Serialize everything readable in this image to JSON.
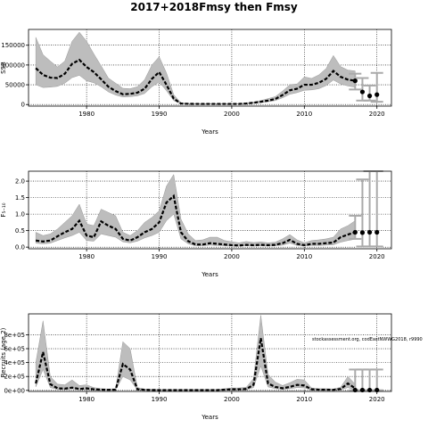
{
  "page_title": "2017+2018Fmsy then Fmsy",
  "colors": {
    "band": "#bdbdbd",
    "line": "#000000",
    "proj_bar": "#aaaaaa",
    "grid": "#000000"
  },
  "chart_data": [
    {
      "type": "line",
      "name": "ssb",
      "title": "",
      "xlabel": "Years",
      "ylabel": "SSB",
      "xlim": [
        1972,
        2022
      ],
      "ylim": [
        -4000,
        190000
      ],
      "xticks": [
        1980,
        1990,
        2000,
        2010,
        2020
      ],
      "xtick_labels": [
        "1980",
        "1990",
        "2000",
        "2010",
        "2020"
      ],
      "yticks": [
        0,
        50000,
        100000,
        150000
      ],
      "ytick_labels": [
        "0",
        "50000",
        "100000",
        "150000"
      ],
      "grid": true,
      "x": [
        1973,
        1974,
        1975,
        1976,
        1977,
        1978,
        1979,
        1980,
        1981,
        1982,
        1983,
        1984,
        1985,
        1986,
        1987,
        1988,
        1989,
        1990,
        1991,
        1992,
        1993,
        1994,
        1995,
        1996,
        1997,
        1998,
        1999,
        2000,
        2001,
        2002,
        2003,
        2004,
        2005,
        2006,
        2007,
        2008,
        2009,
        2010,
        2011,
        2012,
        2013,
        2014,
        2015,
        2016,
        2017
      ],
      "y": [
        92000,
        75000,
        68000,
        67000,
        78000,
        103000,
        113000,
        95000,
        82000,
        64000,
        45000,
        34000,
        26000,
        27000,
        30000,
        40000,
        65000,
        82000,
        50000,
        15000,
        2500,
        1800,
        1500,
        1500,
        1500,
        1500,
        1500,
        1500,
        1500,
        2500,
        4500,
        7000,
        10000,
        14000,
        24000,
        36000,
        40000,
        50000,
        50000,
        55000,
        65000,
        85000,
        70000,
        63000,
        60000
      ],
      "lower": [
        50000,
        43000,
        44000,
        46000,
        54000,
        68000,
        74000,
        60000,
        55000,
        45000,
        32000,
        24000,
        19000,
        20000,
        22000,
        28000,
        45000,
        57000,
        35000,
        10000,
        1500,
        1000,
        900,
        900,
        900,
        900,
        900,
        900,
        900,
        1600,
        3000,
        5000,
        7000,
        10000,
        17000,
        26000,
        30000,
        36000,
        37000,
        40000,
        48000,
        62000,
        52000,
        47000,
        44000
      ],
      "upper": [
        170000,
        126000,
        110000,
        95000,
        110000,
        160000,
        183000,
        160000,
        128000,
        98000,
        67000,
        54000,
        41000,
        40000,
        45000,
        63000,
        100000,
        121000,
        80000,
        25000,
        4000,
        2700,
        2300,
        2300,
        2300,
        2300,
        2300,
        2300,
        2300,
        3600,
        6500,
        10000,
        15000,
        20000,
        34000,
        50000,
        52000,
        70000,
        66000,
        75000,
        91000,
        124000,
        96000,
        87000,
        85000
      ],
      "projection": {
        "x": [
          2017,
          2018,
          2019,
          2020
        ],
        "y": [
          60000,
          32000,
          22000,
          25000
        ],
        "lower": [
          38000,
          10000,
          10000,
          7000
        ],
        "upper": [
          78000,
          67000,
          48000,
          80000
        ]
      }
    },
    {
      "type": "line",
      "name": "f",
      "title": "",
      "xlabel": "Years",
      "ylabel": "F₅₋₁₀",
      "xlim": [
        1972,
        2022
      ],
      "ylim": [
        -0.05,
        2.3
      ],
      "xticks": [
        1980,
        1990,
        2000,
        2010,
        2020
      ],
      "xtick_labels": [
        "1980",
        "1990",
        "2000",
        "2010",
        "2020"
      ],
      "yticks": [
        0,
        0.5,
        1.0,
        1.5,
        2.0
      ],
      "ytick_labels": [
        "0.0",
        "0.5",
        "1.0",
        "1.5",
        "2.0"
      ],
      "grid": true,
      "x": [
        1973,
        1974,
        1975,
        1976,
        1977,
        1978,
        1979,
        1980,
        1981,
        1982,
        1983,
        1984,
        1985,
        1986,
        1987,
        1988,
        1989,
        1990,
        1991,
        1992,
        1993,
        1994,
        1995,
        1996,
        1997,
        1998,
        1999,
        2000,
        2001,
        2002,
        2003,
        2004,
        2005,
        2006,
        2007,
        2008,
        2009,
        2010,
        2011,
        2012,
        2013,
        2014,
        2015,
        2016,
        2017
      ],
      "y": [
        0.2,
        0.17,
        0.2,
        0.33,
        0.45,
        0.55,
        0.8,
        0.35,
        0.3,
        0.78,
        0.65,
        0.55,
        0.25,
        0.2,
        0.3,
        0.45,
        0.55,
        0.75,
        1.35,
        1.55,
        0.45,
        0.18,
        0.08,
        0.08,
        0.12,
        0.1,
        0.08,
        0.06,
        0.05,
        0.07,
        0.06,
        0.07,
        0.06,
        0.07,
        0.12,
        0.22,
        0.1,
        0.06,
        0.1,
        0.1,
        0.12,
        0.14,
        0.3,
        0.38,
        0.45
      ],
      "lower": [
        0.12,
        0.1,
        0.12,
        0.2,
        0.28,
        0.35,
        0.45,
        0.2,
        0.18,
        0.4,
        0.35,
        0.3,
        0.16,
        0.13,
        0.18,
        0.28,
        0.35,
        0.45,
        0.8,
        1.0,
        0.25,
        0.1,
        0.04,
        0.04,
        0.06,
        0.05,
        0.04,
        0.03,
        0.03,
        0.04,
        0.03,
        0.04,
        0.03,
        0.04,
        0.06,
        0.12,
        0.05,
        0.03,
        0.05,
        0.05,
        0.06,
        0.07,
        0.15,
        0.2,
        0.24
      ],
      "upper": [
        0.45,
        0.35,
        0.4,
        0.55,
        0.75,
        0.95,
        1.3,
        0.7,
        0.65,
        1.15,
        1.05,
        0.95,
        0.45,
        0.35,
        0.5,
        0.75,
        0.9,
        1.1,
        1.85,
        2.2,
        0.85,
        0.4,
        0.2,
        0.22,
        0.3,
        0.3,
        0.2,
        0.16,
        0.13,
        0.17,
        0.14,
        0.16,
        0.13,
        0.15,
        0.25,
        0.38,
        0.22,
        0.13,
        0.2,
        0.22,
        0.25,
        0.3,
        0.55,
        0.65,
        0.8
      ],
      "projection": {
        "x": [
          2017,
          2018,
          2019,
          2020
        ],
        "y": [
          0.45,
          0.44,
          0.45,
          0.45
        ],
        "lower": [
          0.25,
          0.02,
          0.02,
          0.02
        ],
        "upper": [
          0.95,
          2.05,
          2.3,
          2.3
        ]
      }
    },
    {
      "type": "line",
      "name": "recruits",
      "title": "",
      "xlabel": "Years",
      "ylabel": "Recruits (age 2)",
      "xlim": [
        1972,
        2022
      ],
      "ylim": [
        -15000,
        1100000
      ],
      "xticks": [
        1980,
        1990,
        2000,
        2010,
        2020
      ],
      "xtick_labels": [
        "1980",
        "1990",
        "2000",
        "2010",
        "2020"
      ],
      "yticks": [
        0,
        200000,
        400000,
        600000,
        800000
      ],
      "ytick_labels": [
        "0e+00",
        "2e+05",
        "4e+05",
        "6e+05",
        "8e+05"
      ],
      "grid": true,
      "annotation": "stockassessment.org, codEastNWWG2018, r9990",
      "x": [
        1973,
        1974,
        1975,
        1976,
        1977,
        1978,
        1979,
        1980,
        1981,
        1982,
        1983,
        1984,
        1985,
        1986,
        1987,
        1988,
        1989,
        1990,
        1991,
        1992,
        1993,
        1994,
        1995,
        1996,
        1997,
        1998,
        1999,
        2000,
        2001,
        2002,
        2003,
        2004,
        2005,
        2006,
        2007,
        2008,
        2009,
        2010,
        2011,
        2012,
        2013,
        2014,
        2015,
        2016,
        2017
      ],
      "y": [
        100000,
        550000,
        90000,
        30000,
        25000,
        40000,
        20000,
        30000,
        15000,
        10000,
        8000,
        10000,
        380000,
        300000,
        15000,
        8000,
        6000,
        5000,
        5000,
        5000,
        5000,
        5000,
        5000,
        5000,
        5000,
        5000,
        10000,
        15000,
        15000,
        20000,
        80000,
        750000,
        100000,
        50000,
        30000,
        50000,
        80000,
        70000,
        15000,
        10000,
        10000,
        8000,
        20000,
        100000,
        30000
      ],
      "lower": [
        50000,
        300000,
        40000,
        15000,
        12000,
        20000,
        10000,
        12000,
        7000,
        5000,
        4000,
        5000,
        200000,
        150000,
        8000,
        4000,
        3000,
        2500,
        2500,
        2500,
        2500,
        2500,
        2500,
        2500,
        2500,
        2500,
        5000,
        7000,
        7000,
        10000,
        40000,
        350000,
        50000,
        25000,
        15000,
        25000,
        40000,
        35000,
        7000,
        5000,
        5000,
        4000,
        10000,
        40000,
        8000
      ],
      "upper": [
        400000,
        1000000,
        200000,
        90000,
        80000,
        150000,
        70000,
        80000,
        40000,
        25000,
        20000,
        25000,
        700000,
        600000,
        40000,
        20000,
        15000,
        12000,
        12000,
        12000,
        12000,
        12000,
        12000,
        12000,
        12000,
        12000,
        25000,
        35000,
        35000,
        45000,
        170000,
        1080000,
        230000,
        120000,
        70000,
        110000,
        160000,
        150000,
        35000,
        25000,
        25000,
        20000,
        45000,
        200000,
        90000
      ],
      "projection": {
        "x": [
          2017,
          2018,
          2019,
          2020
        ],
        "y": [
          5000,
          5000,
          5000,
          5000
        ],
        "lower": [
          2000,
          2000,
          2000,
          2000
        ],
        "upper": [
          300000,
          300000,
          300000,
          300000
        ]
      }
    }
  ]
}
